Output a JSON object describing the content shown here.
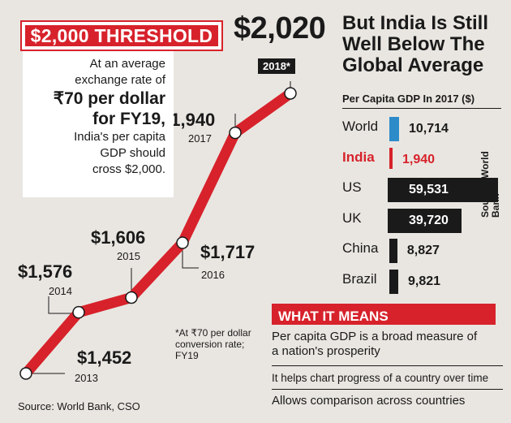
{
  "headline": {
    "banner": "$2,000 THRESHOLD",
    "big_value": "$2,020",
    "big_year": "2018*",
    "note_lines": [
      {
        "text": "At an average",
        "big": false
      },
      {
        "text": "exchange rate of",
        "big": false
      },
      {
        "text": "₹70 per dollar",
        "big": true
      },
      {
        "text": "for FY19,",
        "big": true
      },
      {
        "text": "India's per capita",
        "big": false
      },
      {
        "text": "GDP should",
        "big": false
      },
      {
        "text": "cross $2,000.",
        "big": false
      }
    ],
    "footnote": "*At ₹70 per dollar conversion rate; FY19",
    "source": "Source: World Bank, CSO"
  },
  "right": {
    "title": "But India Is Still Well Below The Global Average",
    "subtitle": "Per Capita GDP In 2017 ($)",
    "source": "Source: World Bank"
  },
  "means": {
    "banner": "WHAT IT MEANS",
    "points": [
      "Per capita GDP is a broad measure of a nation's prosperity",
      "It helps chart progress of a country over time",
      "Allows comparison across countries"
    ]
  },
  "chart_data": [
    {
      "type": "line",
      "x": [
        "2013",
        "2014",
        "2015",
        "2016",
        "2017",
        "2018*"
      ],
      "values": [
        1452,
        1576,
        1606,
        1717,
        1940,
        2020
      ],
      "labels": [
        "$1,452",
        "$1,576",
        "$1,606",
        "$1,717",
        "$1,940",
        "$2,020"
      ],
      "year_labels": [
        "2013",
        "2014",
        "2015",
        "2016",
        "2017"
      ],
      "title": "$2,000 THRESHOLD",
      "line_color": "#d7222b"
    },
    {
      "type": "bar",
      "categories": [
        "World",
        "India",
        "US",
        "UK",
        "China",
        "Brazil"
      ],
      "values": [
        10714,
        1940,
        59531,
        39720,
        8827,
        9821
      ],
      "value_labels": [
        "10,714",
        "1,940",
        "59,531",
        "39,720",
        "8,827",
        "9,821"
      ],
      "title": "Per Capita GDP In 2017 ($)",
      "colors": {
        "World": "#2e8bc9",
        "India": "#d7222b",
        "default": "#1a1a1a"
      },
      "label_colors": {
        "India": "#d7222b",
        "default": "#1a1a1a"
      }
    }
  ]
}
